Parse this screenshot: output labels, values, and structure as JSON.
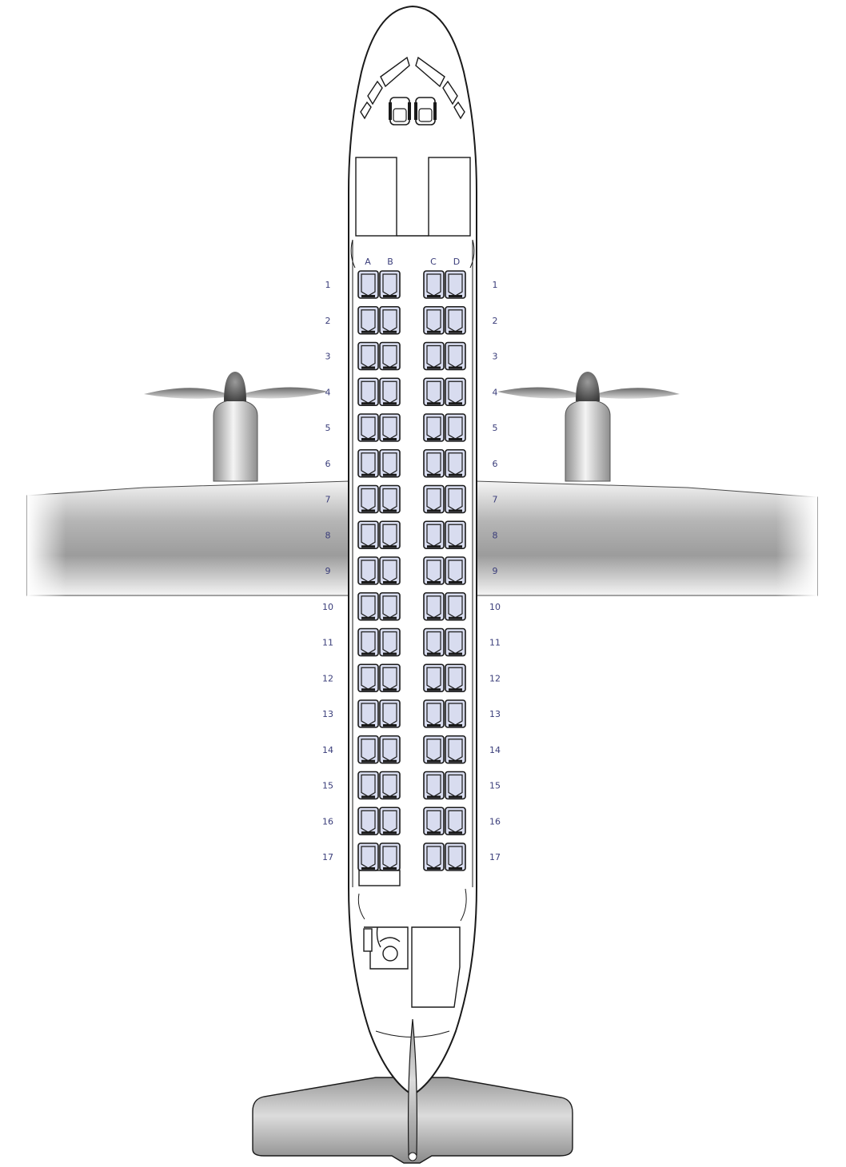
{
  "seat_map": {
    "columns_left": [
      "A",
      "B"
    ],
    "columns_right": [
      "C",
      "D"
    ],
    "rows": [
      "1",
      "2",
      "3",
      "4",
      "5",
      "6",
      "7",
      "8",
      "9",
      "10",
      "11",
      "12",
      "13",
      "14",
      "15",
      "16",
      "17"
    ]
  },
  "colors": {
    "seat_fill": "#d8dcef",
    "outline": "#1a1a1a",
    "label": "#3a3d7a",
    "wing_dark": "#9a9a9a",
    "wing_light": "#f2f2f2"
  },
  "icons": [
    "propeller-icon",
    "cockpit-seat-icon",
    "toilet-icon"
  ]
}
